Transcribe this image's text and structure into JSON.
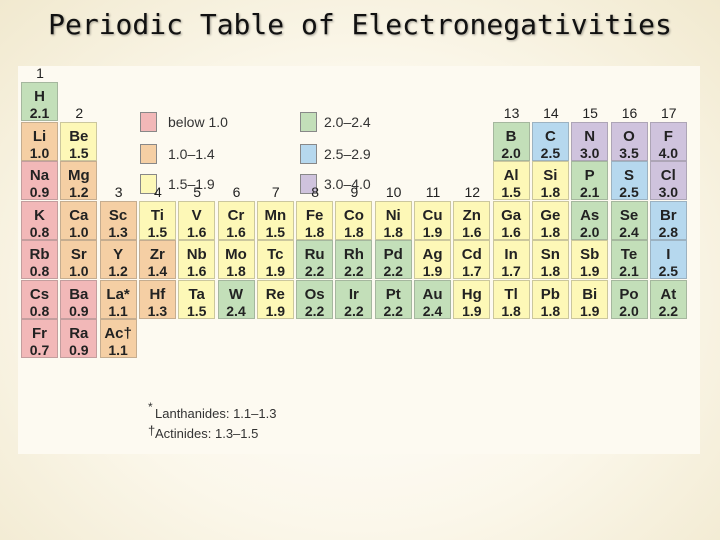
{
  "title": "Periodic Table of Electronegativities",
  "colors": {
    "below_1_0": "#f2b8b8",
    "r1_0_1_4": "#f5cfa4",
    "r1_5_1_9": "#fdf8b7",
    "r2_0_2_4": "#c3dfb9",
    "r2_5_2_9": "#b6d8ee",
    "r3_0_4_0": "#cfc3dd"
  },
  "legend": [
    {
      "label": "below 1.0",
      "color_key": "below_1_0"
    },
    {
      "label": "1.0–1.4",
      "color_key": "r1_0_1_4"
    },
    {
      "label": "1.5–1.9",
      "color_key": "r1_5_1_9"
    },
    {
      "label": "2.0–2.4",
      "color_key": "r2_0_2_4"
    },
    {
      "label": "2.5–2.9",
      "color_key": "r2_5_2_9"
    },
    {
      "label": "3.0–4.0",
      "color_key": "r3_0_4_0"
    }
  ],
  "groups": [
    "1",
    "2",
    "3",
    "4",
    "5",
    "6",
    "7",
    "8",
    "9",
    "10",
    "11",
    "12",
    "13",
    "14",
    "15",
    "16",
    "17"
  ],
  "elements": [
    {
      "symbol": "H",
      "value": "2.1",
      "row": 1,
      "col": 1,
      "band": "r2_0_2_4"
    },
    {
      "symbol": "Li",
      "value": "1.0",
      "row": 2,
      "col": 1,
      "band": "r1_0_1_4"
    },
    {
      "symbol": "Be",
      "value": "1.5",
      "row": 2,
      "col": 2,
      "band": "r1_5_1_9"
    },
    {
      "symbol": "B",
      "value": "2.0",
      "row": 2,
      "col": 13,
      "band": "r2_0_2_4"
    },
    {
      "symbol": "C",
      "value": "2.5",
      "row": 2,
      "col": 14,
      "band": "r2_5_2_9"
    },
    {
      "symbol": "N",
      "value": "3.0",
      "row": 2,
      "col": 15,
      "band": "r3_0_4_0"
    },
    {
      "symbol": "O",
      "value": "3.5",
      "row": 2,
      "col": 16,
      "band": "r3_0_4_0"
    },
    {
      "symbol": "F",
      "value": "4.0",
      "row": 2,
      "col": 17,
      "band": "r3_0_4_0"
    },
    {
      "symbol": "Na",
      "value": "0.9",
      "row": 3,
      "col": 1,
      "band": "below_1_0"
    },
    {
      "symbol": "Mg",
      "value": "1.2",
      "row": 3,
      "col": 2,
      "band": "r1_0_1_4"
    },
    {
      "symbol": "Al",
      "value": "1.5",
      "row": 3,
      "col": 13,
      "band": "r1_5_1_9"
    },
    {
      "symbol": "Si",
      "value": "1.8",
      "row": 3,
      "col": 14,
      "band": "r1_5_1_9"
    },
    {
      "symbol": "P",
      "value": "2.1",
      "row": 3,
      "col": 15,
      "band": "r2_0_2_4"
    },
    {
      "symbol": "S",
      "value": "2.5",
      "row": 3,
      "col": 16,
      "band": "r2_5_2_9"
    },
    {
      "symbol": "Cl",
      "value": "3.0",
      "row": 3,
      "col": 17,
      "band": "r3_0_4_0"
    },
    {
      "symbol": "K",
      "value": "0.8",
      "row": 4,
      "col": 1,
      "band": "below_1_0"
    },
    {
      "symbol": "Ca",
      "value": "1.0",
      "row": 4,
      "col": 2,
      "band": "r1_0_1_4"
    },
    {
      "symbol": "Sc",
      "value": "1.3",
      "row": 4,
      "col": 3,
      "band": "r1_0_1_4"
    },
    {
      "symbol": "Ti",
      "value": "1.5",
      "row": 4,
      "col": 4,
      "band": "r1_5_1_9"
    },
    {
      "symbol": "V",
      "value": "1.6",
      "row": 4,
      "col": 5,
      "band": "r1_5_1_9"
    },
    {
      "symbol": "Cr",
      "value": "1.6",
      "row": 4,
      "col": 6,
      "band": "r1_5_1_9"
    },
    {
      "symbol": "Mn",
      "value": "1.5",
      "row": 4,
      "col": 7,
      "band": "r1_5_1_9"
    },
    {
      "symbol": "Fe",
      "value": "1.8",
      "row": 4,
      "col": 8,
      "band": "r1_5_1_9"
    },
    {
      "symbol": "Co",
      "value": "1.8",
      "row": 4,
      "col": 9,
      "band": "r1_5_1_9"
    },
    {
      "symbol": "Ni",
      "value": "1.8",
      "row": 4,
      "col": 10,
      "band": "r1_5_1_9"
    },
    {
      "symbol": "Cu",
      "value": "1.9",
      "row": 4,
      "col": 11,
      "band": "r1_5_1_9"
    },
    {
      "symbol": "Zn",
      "value": "1.6",
      "row": 4,
      "col": 12,
      "band": "r1_5_1_9"
    },
    {
      "symbol": "Ga",
      "value": "1.6",
      "row": 4,
      "col": 13,
      "band": "r1_5_1_9"
    },
    {
      "symbol": "Ge",
      "value": "1.8",
      "row": 4,
      "col": 14,
      "band": "r1_5_1_9"
    },
    {
      "symbol": "As",
      "value": "2.0",
      "row": 4,
      "col": 15,
      "band": "r2_0_2_4"
    },
    {
      "symbol": "Se",
      "value": "2.4",
      "row": 4,
      "col": 16,
      "band": "r2_0_2_4"
    },
    {
      "symbol": "Br",
      "value": "2.8",
      "row": 4,
      "col": 17,
      "band": "r2_5_2_9"
    },
    {
      "symbol": "Rb",
      "value": "0.8",
      "row": 5,
      "col": 1,
      "band": "below_1_0"
    },
    {
      "symbol": "Sr",
      "value": "1.0",
      "row": 5,
      "col": 2,
      "band": "r1_0_1_4"
    },
    {
      "symbol": "Y",
      "value": "1.2",
      "row": 5,
      "col": 3,
      "band": "r1_0_1_4"
    },
    {
      "symbol": "Zr",
      "value": "1.4",
      "row": 5,
      "col": 4,
      "band": "r1_0_1_4"
    },
    {
      "symbol": "Nb",
      "value": "1.6",
      "row": 5,
      "col": 5,
      "band": "r1_5_1_9"
    },
    {
      "symbol": "Mo",
      "value": "1.8",
      "row": 5,
      "col": 6,
      "band": "r1_5_1_9"
    },
    {
      "symbol": "Tc",
      "value": "1.9",
      "row": 5,
      "col": 7,
      "band": "r1_5_1_9"
    },
    {
      "symbol": "Ru",
      "value": "2.2",
      "row": 5,
      "col": 8,
      "band": "r2_0_2_4"
    },
    {
      "symbol": "Rh",
      "value": "2.2",
      "row": 5,
      "col": 9,
      "band": "r2_0_2_4"
    },
    {
      "symbol": "Pd",
      "value": "2.2",
      "row": 5,
      "col": 10,
      "band": "r2_0_2_4"
    },
    {
      "symbol": "Ag",
      "value": "1.9",
      "row": 5,
      "col": 11,
      "band": "r1_5_1_9"
    },
    {
      "symbol": "Cd",
      "value": "1.7",
      "row": 5,
      "col": 12,
      "band": "r1_5_1_9"
    },
    {
      "symbol": "In",
      "value": "1.7",
      "row": 5,
      "col": 13,
      "band": "r1_5_1_9"
    },
    {
      "symbol": "Sn",
      "value": "1.8",
      "row": 5,
      "col": 14,
      "band": "r1_5_1_9"
    },
    {
      "symbol": "Sb",
      "value": "1.9",
      "row": 5,
      "col": 15,
      "band": "r1_5_1_9"
    },
    {
      "symbol": "Te",
      "value": "2.1",
      "row": 5,
      "col": 16,
      "band": "r2_0_2_4"
    },
    {
      "symbol": "I",
      "value": "2.5",
      "row": 5,
      "col": 17,
      "band": "r2_5_2_9"
    },
    {
      "symbol": "Cs",
      "value": "0.8",
      "row": 6,
      "col": 1,
      "band": "below_1_0"
    },
    {
      "symbol": "Ba",
      "value": "0.9",
      "row": 6,
      "col": 2,
      "band": "below_1_0"
    },
    {
      "symbol": "La*",
      "value": "1.1",
      "row": 6,
      "col": 3,
      "band": "r1_0_1_4"
    },
    {
      "symbol": "Hf",
      "value": "1.3",
      "row": 6,
      "col": 4,
      "band": "r1_0_1_4"
    },
    {
      "symbol": "Ta",
      "value": "1.5",
      "row": 6,
      "col": 5,
      "band": "r1_5_1_9"
    },
    {
      "symbol": "W",
      "value": "2.4",
      "row": 6,
      "col": 6,
      "band": "r2_0_2_4"
    },
    {
      "symbol": "Re",
      "value": "1.9",
      "row": 6,
      "col": 7,
      "band": "r1_5_1_9"
    },
    {
      "symbol": "Os",
      "value": "2.2",
      "row": 6,
      "col": 8,
      "band": "r2_0_2_4"
    },
    {
      "symbol": "Ir",
      "value": "2.2",
      "row": 6,
      "col": 9,
      "band": "r2_0_2_4"
    },
    {
      "symbol": "Pt",
      "value": "2.2",
      "row": 6,
      "col": 10,
      "band": "r2_0_2_4"
    },
    {
      "symbol": "Au",
      "value": "2.4",
      "row": 6,
      "col": 11,
      "band": "r2_0_2_4"
    },
    {
      "symbol": "Hg",
      "value": "1.9",
      "row": 6,
      "col": 12,
      "band": "r1_5_1_9"
    },
    {
      "symbol": "Tl",
      "value": "1.8",
      "row": 6,
      "col": 13,
      "band": "r1_5_1_9"
    },
    {
      "symbol": "Pb",
      "value": "1.8",
      "row": 6,
      "col": 14,
      "band": "r1_5_1_9"
    },
    {
      "symbol": "Bi",
      "value": "1.9",
      "row": 6,
      "col": 15,
      "band": "r1_5_1_9"
    },
    {
      "symbol": "Po",
      "value": "2.0",
      "row": 6,
      "col": 16,
      "band": "r2_0_2_4"
    },
    {
      "symbol": "At",
      "value": "2.2",
      "row": 6,
      "col": 17,
      "band": "r2_0_2_4"
    },
    {
      "symbol": "Fr",
      "value": "0.7",
      "row": 7,
      "col": 1,
      "band": "below_1_0"
    },
    {
      "symbol": "Ra",
      "value": "0.9",
      "row": 7,
      "col": 2,
      "band": "below_1_0"
    },
    {
      "symbol": "Ac†",
      "value": "1.1",
      "row": 7,
      "col": 3,
      "band": "r1_0_1_4"
    }
  ],
  "footnotes": {
    "lanthanides_marker": "*",
    "lanthanides": "Lanthanides: 1.1–1.3",
    "actinides_marker": "†",
    "actinides": "Actinides: 1.3–1.5"
  }
}
